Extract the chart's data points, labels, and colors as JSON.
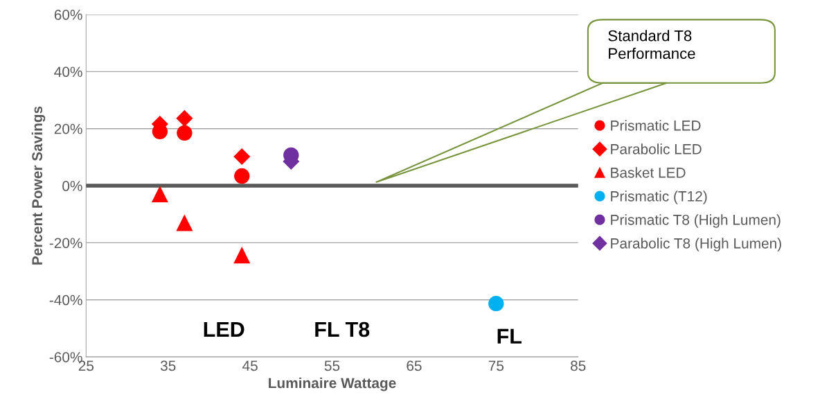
{
  "chart_data": {
    "type": "scatter",
    "xlabel": "Luminaire Wattage",
    "ylabel": "Percent Power Savings",
    "xlim": [
      25,
      85
    ],
    "xticks": [
      25,
      35,
      45,
      55,
      65,
      75,
      85
    ],
    "ylim": [
      -60,
      60
    ],
    "yticks": [
      {
        "value": -60,
        "label": "-60%"
      },
      {
        "value": -40,
        "label": "-40%"
      },
      {
        "value": -20,
        "label": "-20%"
      },
      {
        "value": 0,
        "label": "0%"
      },
      {
        "value": 20,
        "label": "20%"
      },
      {
        "value": 40,
        "label": "40%"
      },
      {
        "value": 60,
        "label": "60%"
      }
    ],
    "grid": "y",
    "legend": "right",
    "series": [
      {
        "name": "Prismatic LED",
        "color": "#ff0000",
        "marker": "circle",
        "x": [
          34,
          37,
          44
        ],
        "values": [
          19,
          18.5,
          3.4
        ]
      },
      {
        "name": "Parabolic LED",
        "color": "#ff0000",
        "marker": "diamond",
        "x": [
          34,
          37,
          44
        ],
        "values": [
          21.6,
          23.6,
          10.2
        ]
      },
      {
        "name": "Basket LED",
        "color": "#ff0000",
        "marker": "triangle",
        "x": [
          34,
          37,
          44
        ],
        "values": [
          -2.9,
          -13,
          -24.3
        ]
      },
      {
        "name": "Prismatic (T12)",
        "color": "#00b0f0",
        "marker": "circle",
        "x": [
          75
        ],
        "values": [
          -41.3
        ]
      },
      {
        "name": "Prismatic T8 (High Lumen)",
        "color": "#7030a0",
        "marker": "circle",
        "x": [
          50
        ],
        "values": [
          10.7
        ]
      },
      {
        "name": "Parabolic T8 (High Lumen)",
        "color": "#7030a0",
        "marker": "diamond",
        "x": [
          50
        ],
        "values": [
          8.5
        ]
      }
    ],
    "ref_lines": [
      {
        "axis": "y",
        "value": 0,
        "color": "#595959"
      }
    ],
    "annotations": [
      "Standard T8 Performance",
      "LED",
      "FL T8",
      "FL"
    ]
  }
}
